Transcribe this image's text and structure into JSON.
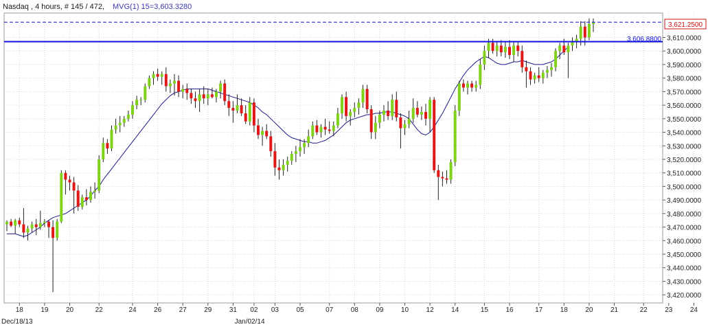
{
  "header": {
    "title": "Nasdaq , 4 hours, # 145 / 472,",
    "indicator": "MVG(1) 15=3,603.3280"
  },
  "price_tags": {
    "last": "3,621.2500",
    "level": "3,606.8800"
  },
  "chart_data": {
    "type": "candlestick",
    "title": "Nasdaq , 4 hours, # 145 / 472, MVG(1) 15=3,603.3280",
    "ylim": [
      3414,
      3628
    ],
    "y_ticks": [
      "3,420.0000",
      "3,430.0000",
      "3,440.0000",
      "3,450.0000",
      "3,460.0000",
      "3,470.0000",
      "3,480.0000",
      "3,490.0000",
      "3,500.0000",
      "3,510.0000",
      "3,520.0000",
      "3,530.0000",
      "3,540.0000",
      "3,550.0000",
      "3,560.0000",
      "3,570.0000",
      "3,580.0000",
      "3,590.0000",
      "3,600.0000",
      "3,610.0000"
    ],
    "y_tick_values": [
      3420,
      3430,
      3440,
      3450,
      3460,
      3470,
      3480,
      3490,
      3500,
      3510,
      3520,
      3530,
      3540,
      3550,
      3560,
      3570,
      3580,
      3590,
      3600,
      3610
    ],
    "x_ticks": [
      "18",
      "19",
      "20",
      "22",
      "24",
      "26",
      "27",
      "29",
      "31",
      "02",
      "03",
      "05",
      "07",
      "08",
      "09",
      "10",
      "12",
      "14",
      "15",
      "16",
      "17",
      "18",
      "20",
      "21",
      "22",
      "23",
      "24"
    ],
    "x_tick_positions": [
      3,
      9,
      15,
      22,
      30,
      36,
      42,
      48,
      54,
      59,
      64,
      70,
      77,
      83,
      89,
      95,
      101,
      107,
      114,
      120,
      127,
      133,
      139,
      145,
      152,
      158,
      164
    ],
    "x_period_labels": [
      {
        "label": "Dec/18/13",
        "index": 0
      },
      {
        "label": "Jan/02/14",
        "index": 56
      }
    ],
    "horizontal_lines": [
      {
        "value": 3621.25,
        "style": "dashed",
        "label": "3,621.2500"
      },
      {
        "value": 3606.88,
        "style": "solid",
        "label": "3,606.8800"
      }
    ],
    "moving_average": {
      "name": "MVG(1) 15",
      "last_value": 3603.328,
      "values": [
        3465,
        3465,
        3465,
        3464,
        3463,
        3464,
        3466,
        3468,
        3470,
        3473,
        3475,
        3477,
        3478,
        3479,
        3480,
        3482,
        3484,
        3486,
        3488,
        3490,
        3493,
        3497,
        3500,
        3505,
        3509,
        3513,
        3517,
        3521,
        3525,
        3529,
        3533,
        3537,
        3541,
        3545,
        3549,
        3553,
        3557,
        3561,
        3564,
        3567,
        3569,
        3570,
        3571,
        3572,
        3572,
        3572,
        3572,
        3572,
        3572,
        3571,
        3570,
        3569,
        3568,
        3567,
        3566,
        3565,
        3564,
        3563,
        3562,
        3560,
        3558,
        3555,
        3553,
        3550,
        3547,
        3544,
        3541,
        3538,
        3536,
        3535,
        3534,
        3533,
        3533,
        3532,
        3532,
        3533,
        3534,
        3536,
        3538,
        3541,
        3544,
        3547,
        3549,
        3550,
        3551,
        3552,
        3553,
        3553,
        3554,
        3554,
        3555,
        3555,
        3555,
        3554,
        3553,
        3552,
        3550,
        3546,
        3542,
        3539,
        3538,
        3540,
        3544,
        3549,
        3554,
        3560,
        3566,
        3572,
        3577,
        3582,
        3586,
        3589,
        3592,
        3594,
        3596,
        3595,
        3593,
        3591,
        3590,
        3590,
        3591,
        3592,
        3592,
        3593,
        3592,
        3591,
        3590,
        3590,
        3590,
        3591,
        3592,
        3594,
        3597,
        3600,
        3603
      ]
    },
    "ohlc": [
      [
        3472,
        3475,
        3467,
        3474
      ],
      [
        3474,
        3476,
        3470,
        3471
      ],
      [
        3471,
        3476,
        3465,
        3475
      ],
      [
        3475,
        3477,
        3470,
        3472
      ],
      [
        3472,
        3484,
        3462,
        3466
      ],
      [
        3466,
        3471,
        3460,
        3469
      ],
      [
        3469,
        3474,
        3466,
        3472
      ],
      [
        3472,
        3476,
        3464,
        3470
      ],
      [
        3470,
        3482,
        3468,
        3473
      ],
      [
        3473,
        3476,
        3470,
        3474
      ],
      [
        3474,
        3475,
        3462,
        3470
      ],
      [
        3470,
        3475,
        3422,
        3462
      ],
      [
        3462,
        3476,
        3460,
        3474
      ],
      [
        3474,
        3512,
        3473,
        3510
      ],
      [
        3510,
        3512,
        3494,
        3505
      ],
      [
        3505,
        3508,
        3497,
        3503
      ],
      [
        3503,
        3507,
        3480,
        3497
      ],
      [
        3497,
        3501,
        3482,
        3485
      ],
      [
        3485,
        3494,
        3483,
        3492
      ],
      [
        3492,
        3498,
        3486,
        3490
      ],
      [
        3490,
        3500,
        3488,
        3496
      ],
      [
        3496,
        3503,
        3491,
        3497
      ],
      [
        3497,
        3523,
        3495,
        3520
      ],
      [
        3520,
        3536,
        3518,
        3532
      ],
      [
        3532,
        3535,
        3524,
        3528
      ],
      [
        3528,
        3545,
        3526,
        3542
      ],
      [
        3542,
        3550,
        3539,
        3545
      ],
      [
        3545,
        3552,
        3540,
        3547
      ],
      [
        3547,
        3552,
        3544,
        3550
      ],
      [
        3550,
        3556,
        3548,
        3553
      ],
      [
        3553,
        3563,
        3550,
        3560
      ],
      [
        3560,
        3567,
        3557,
        3564
      ],
      [
        3564,
        3566,
        3560,
        3564
      ],
      [
        3564,
        3576,
        3562,
        3574
      ],
      [
        3574,
        3582,
        3572,
        3580
      ],
      [
        3580,
        3585,
        3575,
        3583
      ],
      [
        3583,
        3587,
        3578,
        3581
      ],
      [
        3581,
        3585,
        3575,
        3583
      ],
      [
        3583,
        3588,
        3570,
        3574
      ],
      [
        3574,
        3579,
        3569,
        3576
      ],
      [
        3576,
        3583,
        3567,
        3578
      ],
      [
        3578,
        3582,
        3566,
        3570
      ],
      [
        3570,
        3575,
        3565,
        3572
      ],
      [
        3572,
        3576,
        3564,
        3569
      ],
      [
        3569,
        3572,
        3561,
        3565
      ],
      [
        3565,
        3570,
        3558,
        3563
      ],
      [
        3563,
        3572,
        3555,
        3568
      ],
      [
        3568,
        3574,
        3561,
        3565
      ],
      [
        3565,
        3572,
        3560,
        3568
      ],
      [
        3568,
        3573,
        3565,
        3566
      ],
      [
        3566,
        3572,
        3562,
        3570
      ],
      [
        3570,
        3578,
        3565,
        3576
      ],
      [
        3576,
        3579,
        3560,
        3563
      ],
      [
        3563,
        3568,
        3552,
        3558
      ],
      [
        3558,
        3563,
        3547,
        3556
      ],
      [
        3556,
        3568,
        3554,
        3560
      ],
      [
        3560,
        3565,
        3552,
        3554
      ],
      [
        3554,
        3560,
        3546,
        3548
      ],
      [
        3548,
        3566,
        3545,
        3562
      ],
      [
        3562,
        3565,
        3540,
        3545
      ],
      [
        3545,
        3550,
        3535,
        3538
      ],
      [
        3538,
        3544,
        3530,
        3541
      ],
      [
        3541,
        3546,
        3535,
        3537
      ],
      [
        3537,
        3541,
        3522,
        3526
      ],
      [
        3526,
        3532,
        3508,
        3514
      ],
      [
        3514,
        3520,
        3505,
        3512
      ],
      [
        3512,
        3520,
        3508,
        3516
      ],
      [
        3516,
        3522,
        3511,
        3519
      ],
      [
        3519,
        3526,
        3516,
        3524
      ],
      [
        3524,
        3530,
        3518,
        3526
      ],
      [
        3526,
        3535,
        3522,
        3529
      ],
      [
        3529,
        3535,
        3524,
        3532
      ],
      [
        3532,
        3542,
        3529,
        3537
      ],
      [
        3537,
        3548,
        3535,
        3545
      ],
      [
        3545,
        3549,
        3538,
        3540
      ],
      [
        3540,
        3546,
        3536,
        3544
      ],
      [
        3544,
        3550,
        3538,
        3542
      ],
      [
        3542,
        3548,
        3539,
        3541
      ],
      [
        3541,
        3548,
        3537,
        3545
      ],
      [
        3545,
        3558,
        3543,
        3554
      ],
      [
        3554,
        3568,
        3550,
        3566
      ],
      [
        3566,
        3570,
        3548,
        3552
      ],
      [
        3552,
        3557,
        3545,
        3555
      ],
      [
        3555,
        3562,
        3551,
        3558
      ],
      [
        3558,
        3565,
        3553,
        3562
      ],
      [
        3562,
        3575,
        3558,
        3572
      ],
      [
        3572,
        3575,
        3554,
        3557
      ],
      [
        3557,
        3560,
        3535,
        3540
      ],
      [
        3540,
        3552,
        3535,
        3547
      ],
      [
        3547,
        3556,
        3543,
        3553
      ],
      [
        3553,
        3560,
        3548,
        3556
      ],
      [
        3556,
        3563,
        3549,
        3552
      ],
      [
        3552,
        3568,
        3549,
        3564
      ],
      [
        3564,
        3570,
        3548,
        3551
      ],
      [
        3551,
        3554,
        3528,
        3543
      ],
      [
        3543,
        3549,
        3538,
        3546
      ],
      [
        3546,
        3556,
        3543,
        3550
      ],
      [
        3550,
        3565,
        3547,
        3558
      ],
      [
        3558,
        3563,
        3551,
        3553
      ],
      [
        3553,
        3559,
        3549,
        3555
      ],
      [
        3555,
        3561,
        3545,
        3550
      ],
      [
        3550,
        3566,
        3540,
        3564
      ],
      [
        3564,
        3566,
        3510,
        3512
      ],
      [
        3512,
        3516,
        3490,
        3507
      ],
      [
        3507,
        3511,
        3500,
        3506
      ],
      [
        3506,
        3512,
        3502,
        3505
      ],
      [
        3505,
        3520,
        3502,
        3518
      ],
      [
        3518,
        3560,
        3515,
        3556
      ],
      [
        3556,
        3578,
        3552,
        3576
      ],
      [
        3576,
        3579,
        3570,
        3573
      ],
      [
        3573,
        3578,
        3568,
        3576
      ],
      [
        3576,
        3578,
        3570,
        3573
      ],
      [
        3573,
        3578,
        3570,
        3575
      ],
      [
        3575,
        3594,
        3572,
        3590
      ],
      [
        3590,
        3604,
        3586,
        3600
      ],
      [
        3600,
        3609,
        3595,
        3606
      ],
      [
        3606,
        3609,
        3598,
        3600
      ],
      [
        3600,
        3607,
        3596,
        3604
      ],
      [
        3604,
        3608,
        3596,
        3599
      ],
      [
        3599,
        3607,
        3595,
        3603
      ],
      [
        3603,
        3608,
        3594,
        3597
      ],
      [
        3597,
        3607,
        3592,
        3604
      ],
      [
        3604,
        3607,
        3596,
        3600
      ],
      [
        3600,
        3604,
        3584,
        3588
      ],
      [
        3588,
        3593,
        3573,
        3585
      ],
      [
        3585,
        3588,
        3575,
        3579
      ],
      [
        3579,
        3584,
        3576,
        3582
      ],
      [
        3582,
        3588,
        3577,
        3580
      ],
      [
        3580,
        3586,
        3576,
        3584
      ],
      [
        3584,
        3589,
        3580,
        3586
      ],
      [
        3586,
        3591,
        3581,
        3588
      ],
      [
        3588,
        3602,
        3585,
        3600
      ],
      [
        3600,
        3606,
        3594,
        3604
      ],
      [
        3604,
        3609,
        3597,
        3599
      ],
      [
        3599,
        3606,
        3580,
        3604
      ],
      [
        3604,
        3610,
        3600,
        3607
      ],
      [
        3607,
        3612,
        3602,
        3609
      ],
      [
        3609,
        3622,
        3604,
        3618
      ],
      [
        3618,
        3622,
        3604,
        3610
      ],
      [
        3610,
        3624,
        3608,
        3620
      ],
      [
        3620,
        3624,
        3614,
        3621
      ]
    ],
    "colors": {
      "up": "#7fd11a",
      "down": "#e01818",
      "wick": "#222222",
      "moving_average": "#1a1a8a",
      "level_line": "#1010e0",
      "last_price_tag": "#d01010",
      "grid": "#d6d6d6"
    }
  }
}
